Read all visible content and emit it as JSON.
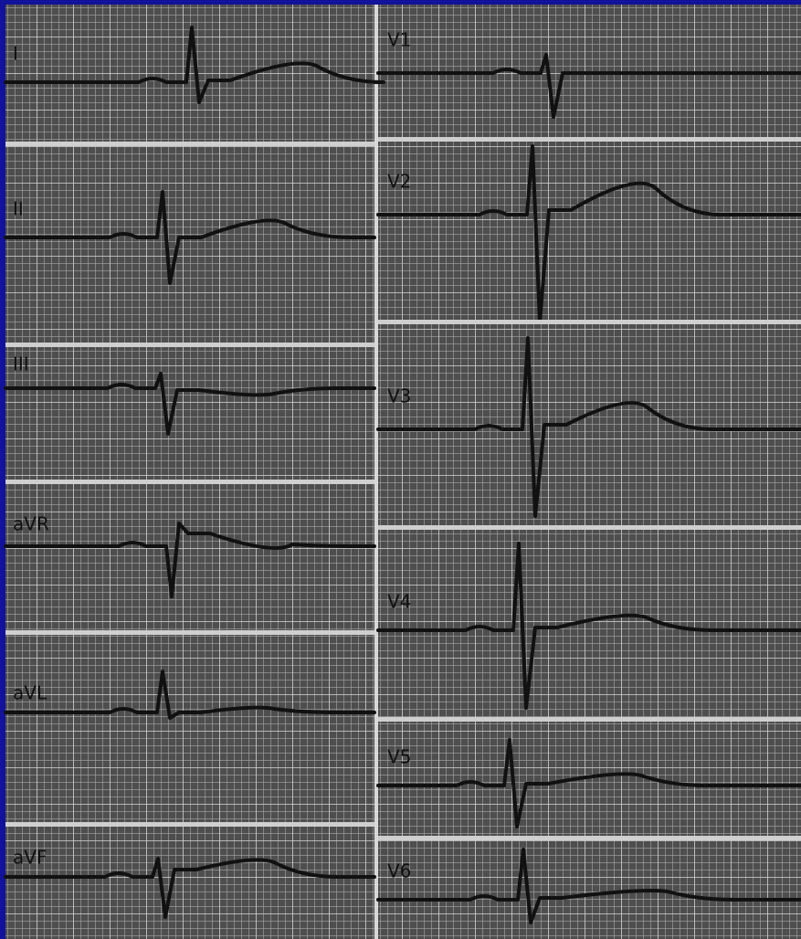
{
  "left_leads": [
    "I",
    "II",
    "III",
    "aVR",
    "aVL",
    "aVF"
  ],
  "right_leads": [
    "V1",
    "V2",
    "V3",
    "V4",
    "V5",
    "V6"
  ]
}
